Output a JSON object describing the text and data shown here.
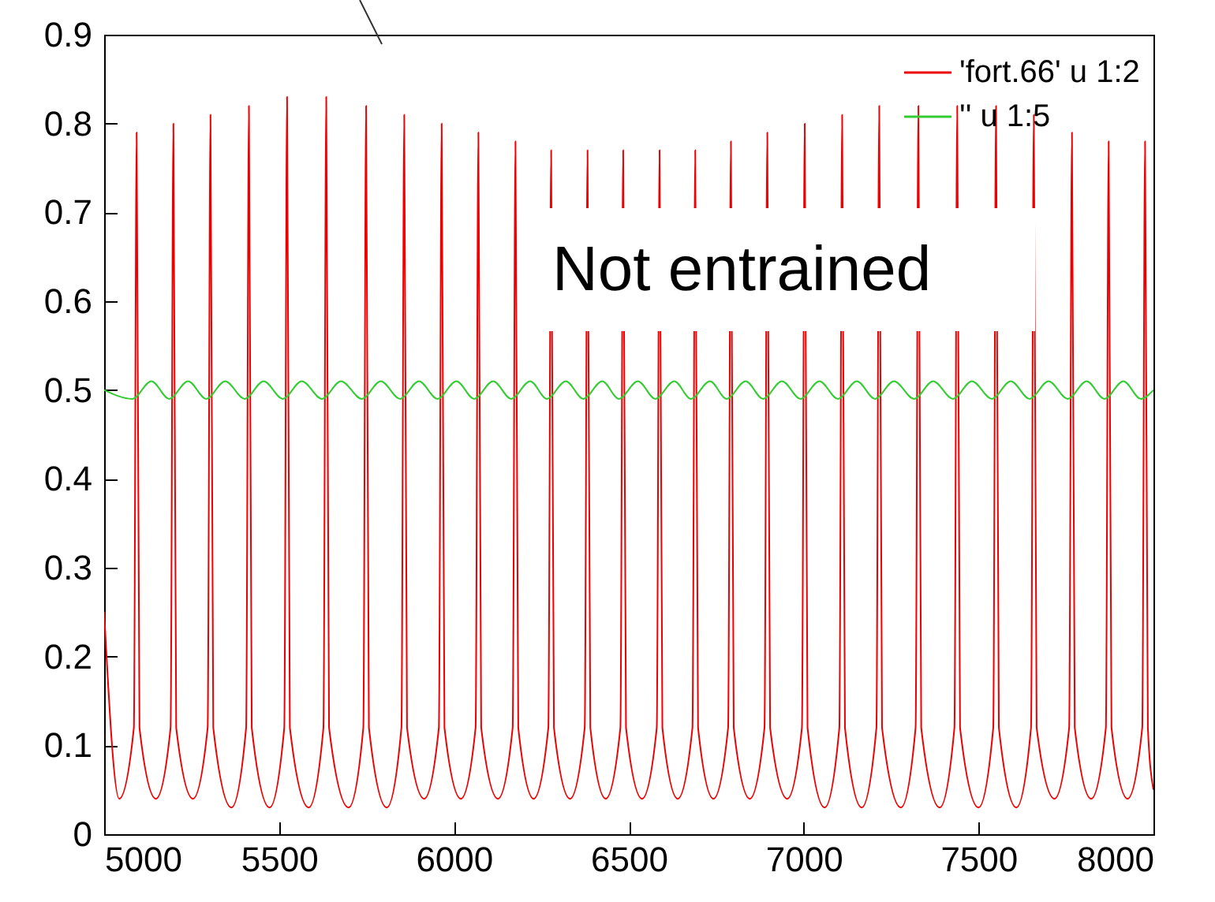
{
  "chart_data": {
    "type": "line",
    "xlim": [
      5000,
      8000
    ],
    "xticks": [
      5000,
      5500,
      6000,
      6500,
      7000,
      7500,
      8000
    ],
    "ylim": [
      0,
      0.9
    ],
    "yticks": [
      0,
      0.1,
      0.2,
      0.3,
      0.4,
      0.5,
      0.6,
      0.7,
      0.8,
      0.9
    ],
    "grid": false,
    "legend": "top right",
    "annotations": [
      "Not entrained"
    ],
    "series": [
      {
        "name": "'fort.66' u 1:2",
        "color": "#ee0000",
        "x": [
          5000,
          5043,
          5085,
          5093,
          5101,
          5148,
          5190,
          5198,
          5206,
          5254,
          5296,
          5304,
          5312,
          5364,
          5406,
          5414,
          5422,
          5473,
          5515,
          5523,
          5531,
          5585,
          5627,
          5635,
          5643,
          5699,
          5741,
          5749,
          5757,
          5808,
          5850,
          5858,
          5866,
          5915,
          5957,
          5965,
          5973,
          6020,
          6062,
          6070,
          6078,
          6126,
          6168,
          6176,
          6184,
          6228,
          6270,
          6278,
          6286,
          6332,
          6374,
          6382,
          6390,
          6434,
          6476,
          6484,
          6492,
          6538,
          6580,
          6588,
          6596,
          6640,
          6682,
          6690,
          6698,
          6742,
          6784,
          6792,
          6800,
          6846,
          6888,
          6896,
          6904,
          6953,
          6995,
          7003,
          7011,
          7060,
          7102,
          7110,
          7118,
          7166,
          7208,
          7216,
          7224,
          7278,
          7320,
          7328,
          7336,
          7389,
          7431,
          7439,
          7447,
          7500,
          7542,
          7550,
          7558,
          7608,
          7650,
          7658,
          7666,
          7717,
          7759,
          7767,
          7775,
          7822,
          7864,
          7872,
          7880,
          7926,
          7968,
          7976,
          7984,
          8000
        ],
        "values": [
          0.25,
          0.04,
          0.12,
          0.79,
          0.12,
          0.04,
          0.12,
          0.8,
          0.12,
          0.04,
          0.12,
          0.81,
          0.12,
          0.03,
          0.12,
          0.82,
          0.12,
          0.03,
          0.12,
          0.83,
          0.12,
          0.03,
          0.12,
          0.83,
          0.12,
          0.03,
          0.12,
          0.82,
          0.12,
          0.03,
          0.12,
          0.81,
          0.12,
          0.04,
          0.12,
          0.8,
          0.12,
          0.04,
          0.12,
          0.79,
          0.12,
          0.04,
          0.12,
          0.78,
          0.12,
          0.04,
          0.12,
          0.77,
          0.12,
          0.04,
          0.12,
          0.77,
          0.12,
          0.04,
          0.12,
          0.77,
          0.12,
          0.04,
          0.12,
          0.77,
          0.12,
          0.04,
          0.12,
          0.77,
          0.12,
          0.04,
          0.12,
          0.78,
          0.12,
          0.04,
          0.12,
          0.79,
          0.12,
          0.04,
          0.12,
          0.8,
          0.12,
          0.03,
          0.12,
          0.81,
          0.12,
          0.03,
          0.12,
          0.82,
          0.12,
          0.03,
          0.12,
          0.82,
          0.12,
          0.03,
          0.12,
          0.82,
          0.12,
          0.03,
          0.12,
          0.82,
          0.12,
          0.03,
          0.12,
          0.81,
          0.12,
          0.04,
          0.12,
          0.79,
          0.12,
          0.04,
          0.12,
          0.78,
          0.12,
          0.04,
          0.12,
          0.78,
          0.12,
          0.05
        ]
      },
      {
        "name": "'' u 1:5",
        "color": "#33cc33",
        "x": [
          5000,
          5081,
          5135,
          5186,
          5240,
          5292,
          5346,
          5402,
          5456,
          5511,
          5565,
          5623,
          5677,
          5737,
          5791,
          5846,
          5900,
          5953,
          6007,
          6058,
          6112,
          6164,
          6218,
          6266,
          6320,
          6370,
          6424,
          6472,
          6526,
          6576,
          6630,
          6678,
          6732,
          6780,
          6834,
          6884,
          6938,
          6991,
          7045,
          7098,
          7152,
          7204,
          7258,
          7316,
          7370,
          7427,
          7481,
          7538,
          7592,
          7646,
          7700,
          7755,
          7809,
          7860,
          7914,
          7964,
          8000
        ],
        "values": [
          0.5,
          0.49,
          0.51,
          0.49,
          0.51,
          0.49,
          0.51,
          0.49,
          0.51,
          0.49,
          0.51,
          0.49,
          0.51,
          0.49,
          0.51,
          0.49,
          0.51,
          0.49,
          0.51,
          0.49,
          0.51,
          0.49,
          0.51,
          0.49,
          0.51,
          0.49,
          0.51,
          0.49,
          0.51,
          0.49,
          0.51,
          0.49,
          0.51,
          0.49,
          0.51,
          0.49,
          0.51,
          0.49,
          0.51,
          0.49,
          0.51,
          0.49,
          0.51,
          0.49,
          0.51,
          0.49,
          0.51,
          0.49,
          0.51,
          0.49,
          0.51,
          0.49,
          0.51,
          0.49,
          0.51,
          0.49,
          0.5
        ]
      }
    ]
  }
}
